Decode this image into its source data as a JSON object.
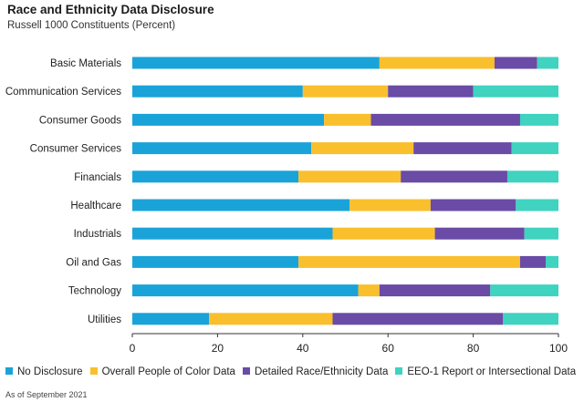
{
  "header": {
    "title": "Race and Ethnicity Data Disclosure",
    "subtitle": "Russell 1000 Constituents (Percent)"
  },
  "footer": {
    "note": "As of September 2021"
  },
  "colors": {
    "No Disclosure": "#1aa3d8",
    "Overall People of Color Data": "#f9bf2c",
    "Detailed Race/Ethnicity Data": "#6a4ba6",
    "EEO-1 Report or Intersectional Data": "#3fd3c0"
  },
  "chart_data": {
    "type": "bar",
    "orientation": "horizontal",
    "stacked": true,
    "title": "Race and Ethnicity Data Disclosure",
    "subtitle": "Russell 1000 Constituents (Percent)",
    "xlabel": "",
    "ylabel": "",
    "xlim": [
      0,
      100
    ],
    "xticks": [
      0,
      20,
      40,
      60,
      80,
      100
    ],
    "grid": false,
    "legend_position": "bottom",
    "categories": [
      "Basic Materials",
      "Communication Services",
      "Consumer Goods",
      "Consumer Services",
      "Financials",
      "Healthcare",
      "Industrials",
      "Oil and Gas",
      "Technology",
      "Utilities"
    ],
    "series": [
      {
        "name": "No Disclosure",
        "values": [
          58,
          40,
          45,
          42,
          39,
          51,
          47,
          39,
          53,
          18
        ]
      },
      {
        "name": "Overall People of Color Data",
        "values": [
          27,
          20,
          11,
          24,
          24,
          19,
          24,
          52,
          5,
          29
        ]
      },
      {
        "name": "Detailed Race/Ethnicity Data",
        "values": [
          10,
          20,
          35,
          23,
          25,
          20,
          21,
          6,
          26,
          40
        ]
      },
      {
        "name": "EEO-1 Report or Intersectional Data",
        "values": [
          5,
          20,
          9,
          11,
          12,
          10,
          8,
          3,
          16,
          13
        ]
      }
    ]
  }
}
